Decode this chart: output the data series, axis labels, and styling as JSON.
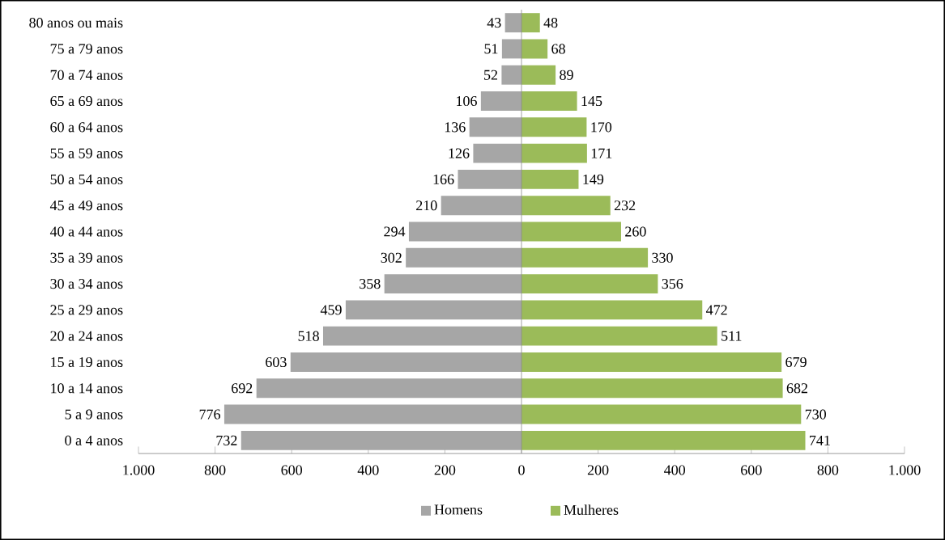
{
  "chart_data": {
    "type": "bar",
    "orientation": "horizontal",
    "categories": [
      "80 anos ou mais",
      "75 a 79 anos",
      "70 a 74 anos",
      "65 a 69 anos",
      "60 a 64 anos",
      "55 a 59 anos",
      "50 a 54 anos",
      "45 a 49 anos",
      "40 a 44 anos",
      "35 a 39 anos",
      "30 a 34 anos",
      "25 a 29 anos",
      "20 a 24 anos",
      "15 a 19 anos",
      "10 a 14 anos",
      "5 a 9 anos",
      "0 a 4 anos"
    ],
    "series": [
      {
        "name": "Homens",
        "color": "#a6a6a6",
        "values": [
          43,
          51,
          52,
          106,
          136,
          126,
          166,
          210,
          294,
          302,
          358,
          459,
          518,
          603,
          692,
          776,
          732
        ],
        "base": [
          -43,
          -51,
          -52,
          -106,
          -136,
          -126,
          -166,
          -210,
          -294,
          -302,
          -358,
          -459,
          -518,
          -603,
          -692,
          -776,
          -732
        ],
        "value_labels": [
          "43",
          "51",
          "52",
          "106",
          "136",
          "126",
          "166",
          "210",
          "294",
          "302",
          "358",
          "459",
          "518",
          "603",
          "692",
          "776",
          "732"
        ]
      },
      {
        "name": "Mulheres",
        "color": "#9bbb59",
        "values": [
          48,
          68,
          89,
          145,
          170,
          171,
          149,
          232,
          260,
          330,
          356,
          472,
          511,
          679,
          682,
          730,
          741
        ],
        "value_labels": [
          "48",
          "68",
          "89",
          "145",
          "170",
          "171",
          "149",
          "232",
          "260",
          "330",
          "356",
          "472",
          "511",
          "679",
          "682",
          "730",
          "741"
        ]
      }
    ],
    "xlim": [
      -1000,
      1000
    ],
    "xticks": [
      {
        "value": -1000,
        "label": "1.000"
      },
      {
        "value": -800,
        "label": "800"
      },
      {
        "value": -600,
        "label": "600"
      },
      {
        "value": -400,
        "label": "400"
      },
      {
        "value": -200,
        "label": "200"
      },
      0,
      200,
      400,
      600,
      800,
      {
        "value": 1000,
        "label": "1.000"
      }
    ],
    "grid": false,
    "ref_lines": [
      {
        "axis": "x",
        "value": 0,
        "color": "#8c8c8c"
      }
    ],
    "legend": "bottom"
  }
}
